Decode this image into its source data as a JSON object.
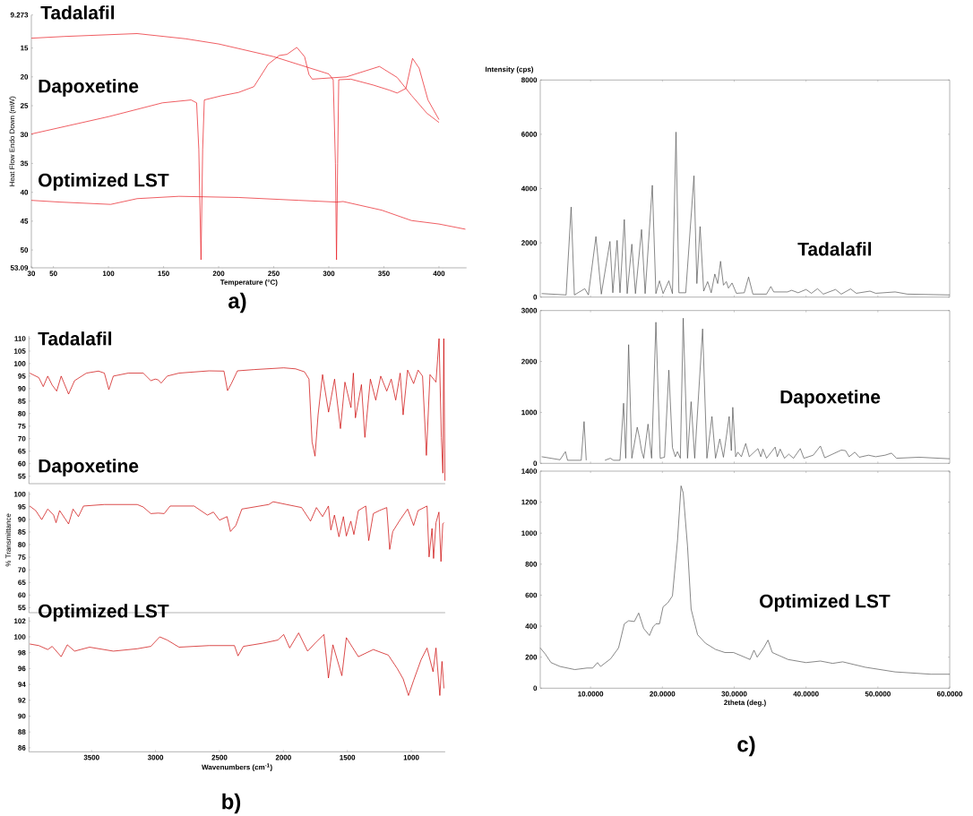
{
  "chart_data": [
    {
      "type": "line",
      "xlabel": "Temperature (°C)",
      "ylabel": "Heat Flow Endo Down (mW)",
      "xlim": [
        30,
        425
      ],
      "ylim": [
        53.09,
        9.273
      ],
      "xticks": [
        30,
        50,
        100,
        150,
        200,
        250,
        300,
        350,
        400
      ],
      "yticks": [
        9.273,
        15,
        20,
        25,
        30,
        35,
        40,
        45,
        50,
        53.09
      ],
      "annotations": [
        "a)"
      ],
      "series": [
        {
          "name": "Tadalafil",
          "color": "#e8191f",
          "x": [
            30,
            60,
            126,
            170,
            200,
            250,
            300,
            304,
            306,
            307,
            308,
            309,
            320,
            340,
            355,
            362,
            370,
            376,
            382,
            390,
            400
          ],
          "values": [
            13.3,
            13.0,
            12.5,
            13.4,
            14.3,
            16.5,
            19.5,
            20.5,
            35,
            51.7,
            35,
            20.5,
            20.4,
            21.4,
            22.3,
            22.8,
            22.0,
            16.8,
            18.5,
            24,
            27.4
          ]
        },
        {
          "name": "Dapoxetine",
          "color": "#e8191f",
          "x": [
            30,
            100,
            149,
            175,
            180,
            182,
            184,
            185.5,
            187,
            202,
            218,
            232,
            245,
            255,
            262,
            271,
            278,
            282,
            285,
            300,
            316,
            346,
            362,
            375,
            389,
            400
          ],
          "values": [
            29.9,
            26.9,
            24.5,
            24,
            24.5,
            32.5,
            51.7,
            32.5,
            24,
            23.3,
            22.7,
            21.7,
            17.8,
            16.3,
            16.1,
            14.9,
            16.5,
            19.6,
            20.4,
            20.2,
            20,
            18.2,
            20.1,
            23.2,
            26.3,
            27.9
          ]
        },
        {
          "name": "Optimized LST",
          "color": "#e8191f",
          "x": [
            30,
            56,
            102,
            126,
            164,
            218,
            273,
            307,
            313,
            348,
            375,
            400,
            424
          ],
          "values": [
            41.4,
            41.7,
            42.1,
            41.1,
            40.7,
            40.9,
            41.4,
            41.7,
            41.6,
            43.1,
            44.9,
            45.5,
            46.4
          ]
        }
      ]
    },
    {
      "type": "line",
      "xlim": [
        3990,
        735
      ],
      "ylim": [
        52,
        111
      ],
      "yticks": [
        55,
        60,
        65,
        70,
        75,
        80,
        85,
        90,
        95,
        100,
        105,
        110
      ],
      "tick_labels": "y",
      "series": [
        {
          "name": "Tadalafil",
          "color": "#cc0000",
          "x": [
            3984,
            3913,
            3878,
            3843,
            3808,
            3773,
            3738,
            3680,
            3633,
            3540,
            3446,
            3400,
            3365,
            3330,
            3213,
            3096,
            3037,
            3002,
            2979,
            2956,
            2909,
            2816,
            2582,
            2465,
            2437,
            2407,
            2360,
            2231,
            1998,
            1905,
            1835,
            1800,
            1776,
            1753,
            1729,
            1694,
            1647,
            1600,
            1554,
            1519,
            1472,
            1453,
            1437,
            1390,
            1363,
            1320,
            1278,
            1239,
            1192,
            1157,
            1122,
            1087,
            1064,
            1029,
            982,
            947,
            912,
            882,
            854,
            807,
            783,
            765,
            753,
            746,
            737
          ],
          "values": [
            96.2,
            94.4,
            90.8,
            95,
            91.4,
            89,
            95,
            87.8,
            93.2,
            96.2,
            97,
            96.2,
            89.6,
            95,
            96.2,
            96.2,
            93.2,
            93.8,
            93.5,
            92.2,
            95,
            96.2,
            97.1,
            97,
            89.2,
            92,
            97.1,
            97.6,
            98.3,
            97.9,
            96.7,
            93.8,
            68.7,
            63,
            79.5,
            95.6,
            80.6,
            93.8,
            74,
            92.6,
            82.4,
            96.2,
            78.3,
            91.6,
            70.5,
            93.8,
            85.4,
            95,
            89,
            93.8,
            85.4,
            96.2,
            79.5,
            97.4,
            92,
            97.4,
            95,
            63.3,
            95.6,
            92.6,
            110,
            70.5,
            56.2,
            110,
            53.2
          ]
        }
      ]
    },
    {
      "type": "line",
      "ylabel": "% Transmittance",
      "xlim": [
        3990,
        735
      ],
      "ylim": [
        53,
        101
      ],
      "yticks": [
        55,
        60,
        65,
        70,
        75,
        80,
        85,
        90,
        95,
        100
      ],
      "tick_labels": "y",
      "series": [
        {
          "name": "Dapoxetine",
          "color": "#cc0000",
          "x": [
            3984,
            3937,
            3890,
            3843,
            3797,
            3778,
            3750,
            3680,
            3645,
            3603,
            3563,
            3400,
            3143,
            3096,
            3037,
            2979,
            2932,
            2886,
            2699,
            2594,
            2547,
            2500,
            2441,
            2414,
            2372,
            2325,
            2115,
            2080,
            1975,
            1858,
            1788,
            1742,
            1694,
            1648,
            1629,
            1601,
            1566,
            1531,
            1508,
            1473,
            1449,
            1414,
            1356,
            1333,
            1297,
            1250,
            1192,
            1169,
            1145,
            1087,
            1029,
            982,
            947,
            877,
            861,
            838,
            826,
            807,
            784,
            768,
            754,
            745
          ],
          "values": [
            95.3,
            93.5,
            89.9,
            94.1,
            91.7,
            88.7,
            93.5,
            88.2,
            94.1,
            91.1,
            95.3,
            95.9,
            95.9,
            94.9,
            92.3,
            92.5,
            92.3,
            95.3,
            95.3,
            91.7,
            92.9,
            89.7,
            91.1,
            85.2,
            87.6,
            94.1,
            95.9,
            97,
            95.9,
            94.7,
            89.3,
            94.7,
            91.1,
            95.3,
            85.8,
            91.7,
            83.1,
            91.1,
            83.4,
            89.3,
            84,
            93.5,
            95.3,
            81.6,
            92.3,
            93.5,
            94.7,
            78.1,
            85.2,
            89.9,
            94.1,
            87.6,
            93.5,
            95.3,
            75.1,
            86.4,
            74.5,
            88.7,
            92.9,
            73.3,
            88.2,
            88.7
          ]
        }
      ]
    },
    {
      "type": "line",
      "xlabel": "Wavenumbers (cm$^{-1}$)",
      "xlim": [
        3990,
        735
      ],
      "ylim": [
        85.5,
        102.5
      ],
      "xticks": [
        3500,
        3000,
        2500,
        2000,
        1500,
        1000
      ],
      "yticks": [
        86,
        88,
        90,
        92,
        94,
        96,
        98,
        100,
        102
      ],
      "annotations": [
        "b)"
      ],
      "series": [
        {
          "name": "Optimized LST",
          "color": "#cc0000",
          "x": [
            3984,
            3913,
            3843,
            3808,
            3738,
            3690,
            3633,
            3516,
            3330,
            3143,
            3037,
            2967,
            2909,
            2816,
            2582,
            2383,
            2355,
            2313,
            2161,
            2044,
            1998,
            1951,
            1881,
            1811,
            1741,
            1683,
            1648,
            1613,
            1543,
            1508,
            1414,
            1297,
            1180,
            1110,
            1064,
            1022,
            982,
            924,
            877,
            830,
            807,
            777,
            760,
            745
          ],
          "values": [
            99.1,
            98.9,
            98.4,
            98.8,
            97.5,
            99,
            98.2,
            98.7,
            98.2,
            98.5,
            98.8,
            100,
            99.6,
            98.7,
            98.9,
            98.9,
            97.6,
            98.8,
            99.2,
            99.6,
            100.3,
            98.6,
            100.5,
            98.2,
            99.4,
            100.3,
            94.8,
            99,
            95.1,
            99.9,
            97.5,
            98.4,
            97.7,
            96,
            94.7,
            92.6,
            94.5,
            97.1,
            98.6,
            95.6,
            98.6,
            92.6,
            96.9,
            93.5
          ]
        }
      ]
    },
    {
      "type": "line",
      "ylabel": "Intensity (cps)",
      "xlim": [
        3,
        60
      ],
      "ylim": [
        0,
        8000
      ],
      "yticks": [
        0,
        2000,
        4000,
        6000,
        8000
      ],
      "xticks": [
        {
          "value": 10,
          "label": null
        },
        {
          "value": 20,
          "label": null
        },
        {
          "value": 30,
          "label": null
        },
        {
          "value": 40,
          "label": null
        },
        {
          "value": 50,
          "label": null
        }
      ],
      "tick_labels": "y",
      "series": [
        {
          "name": "Tadalafil",
          "color": "#555555",
          "x": [
            3.2,
            6.6,
            7.3,
            7.75,
            9.2,
            9.7,
            10.75,
            11.5,
            12.7,
            13.1,
            13.7,
            14.1,
            14.7,
            15.1,
            15.75,
            16.25,
            17.1,
            17.6,
            18.6,
            19.1,
            19.6,
            20.1,
            20.9,
            21.4,
            21.9,
            22.3,
            23.25,
            24.4,
            24.8,
            25.25,
            25.75,
            26.3,
            26.8,
            27.3,
            27.7,
            28.1,
            28.5,
            28.9,
            29.2,
            29.7,
            30.3,
            31.4,
            32,
            32.6,
            34.5,
            35.1,
            35.5,
            37.4,
            38,
            38.9,
            40,
            40.75,
            41.6,
            42.4,
            44.1,
            44.9,
            46.2,
            47,
            48.9,
            49.7,
            52.4,
            54.1,
            60
          ],
          "values": [
            130,
            80,
            3320,
            80,
            310,
            80,
            2230,
            110,
            2050,
            160,
            2090,
            160,
            2860,
            130,
            1950,
            130,
            2490,
            130,
            4120,
            130,
            600,
            130,
            600,
            130,
            6080,
            160,
            160,
            4470,
            500,
            2600,
            220,
            570,
            160,
            850,
            500,
            1320,
            440,
            570,
            330,
            520,
            140,
            160,
            740,
            110,
            110,
            390,
            190,
            190,
            250,
            160,
            280,
            140,
            310,
            110,
            280,
            110,
            300,
            140,
            220,
            140,
            190,
            110,
            80
          ]
        }
      ]
    },
    {
      "type": "line",
      "xlim": [
        3,
        60
      ],
      "ylim": [
        0,
        3000
      ],
      "yticks": [
        0,
        1000,
        2000,
        3000
      ],
      "xticks": [
        {
          "value": 10,
          "label": null
        },
        {
          "value": 20,
          "label": null
        },
        {
          "value": 30,
          "label": null
        },
        {
          "value": 40,
          "label": null
        },
        {
          "value": 50,
          "label": null
        }
      ],
      "tick_labels": "y",
      "series": [
        {
          "name": "Dapoxetine",
          "color": "#555555",
          "x": [
            3.2,
            5.75,
            6.5,
            6.8,
            8.7,
            9.1,
            9.4,
            10.5,
            12,
            12.75,
            13.2,
            14.1,
            14.6,
            14.9,
            15.3,
            15.75,
            16.5,
            16.8,
            17.1,
            17.4,
            18,
            18.5,
            19.1,
            19.7,
            20.3,
            20.9,
            21.4,
            21.8,
            22.1,
            22.5,
            22.9,
            23.5,
            24,
            24.5,
            25.6,
            26.2,
            26.9,
            27.4,
            28,
            28.5,
            29.3,
            29.6,
            29.8,
            30.2,
            30.5,
            31,
            31.6,
            32.1,
            33.3,
            33.7,
            34,
            34.5,
            35.7,
            36,
            36.4,
            37,
            37.6,
            38.25,
            39.2,
            39.7,
            41,
            42,
            42.6,
            44.9,
            45.5,
            46,
            46.8,
            47.4,
            48.7,
            49.7,
            51,
            51.9,
            52.6,
            55.75,
            60
          ],
          "values": [
            130,
            70,
            230,
            60,
            60,
            820,
            60,
            null,
            60,
            100,
            60,
            60,
            1180,
            100,
            2330,
            100,
            710,
            510,
            250,
            100,
            770,
            100,
            2770,
            100,
            120,
            1830,
            310,
            130,
            230,
            100,
            2850,
            100,
            1210,
            100,
            2640,
            100,
            920,
            100,
            480,
            120,
            920,
            250,
            1100,
            130,
            220,
            130,
            390,
            130,
            290,
            130,
            280,
            100,
            320,
            130,
            280,
            100,
            180,
            100,
            290,
            100,
            160,
            340,
            110,
            260,
            250,
            130,
            220,
            120,
            160,
            130,
            160,
            200,
            100,
            120,
            90
          ]
        }
      ]
    },
    {
      "type": "line",
      "xlabel": "2theta (deg.)",
      "xlim": [
        3,
        60
      ],
      "ylim": [
        0,
        1400
      ],
      "yticks": [
        0,
        200,
        400,
        600,
        800,
        1000,
        1200,
        1400
      ],
      "xticks": [
        {
          "value": 10,
          "label": "10.0000"
        },
        {
          "value": 20,
          "label": "20.0000"
        },
        {
          "value": 30,
          "label": "30.0000"
        },
        {
          "value": 40,
          "label": "40.0000"
        },
        {
          "value": 50,
          "label": "50.0000"
        },
        {
          "value": 60,
          "label": "60.0000"
        }
      ],
      "annotations": [
        "c)"
      ],
      "series": [
        {
          "name": "Optimized LST",
          "color": "#555555",
          "x": [
            3,
            3.7,
            4.5,
            5.75,
            7.8,
            9.5,
            10.3,
            10.96,
            11.4,
            12.8,
            13.9,
            14.7,
            15.3,
            16.1,
            16.7,
            17.4,
            18.2,
            18.7,
            19.1,
            19.6,
            20.1,
            20.75,
            21.4,
            22.1,
            22.6,
            22.9,
            23.5,
            24,
            24.9,
            26,
            27.4,
            28.7,
            29.9,
            31.2,
            32.2,
            32.75,
            33.2,
            34.1,
            34.7,
            35.3,
            37.5,
            40,
            42,
            43.7,
            45.1,
            48.25,
            52.4,
            57.4,
            60
          ],
          "values": [
            260,
            220,
            165,
            140,
            120,
            130,
            130,
            165,
            140,
            190,
            260,
            415,
            435,
            430,
            485,
            385,
            340,
            395,
            415,
            415,
            525,
            550,
            595,
            950,
            1305,
            1260,
            915,
            510,
            345,
            290,
            250,
            230,
            230,
            205,
            185,
            245,
            200,
            260,
            310,
            230,
            185,
            165,
            175,
            160,
            170,
            135,
            105,
            90,
            90
          ]
        }
      ]
    }
  ]
}
